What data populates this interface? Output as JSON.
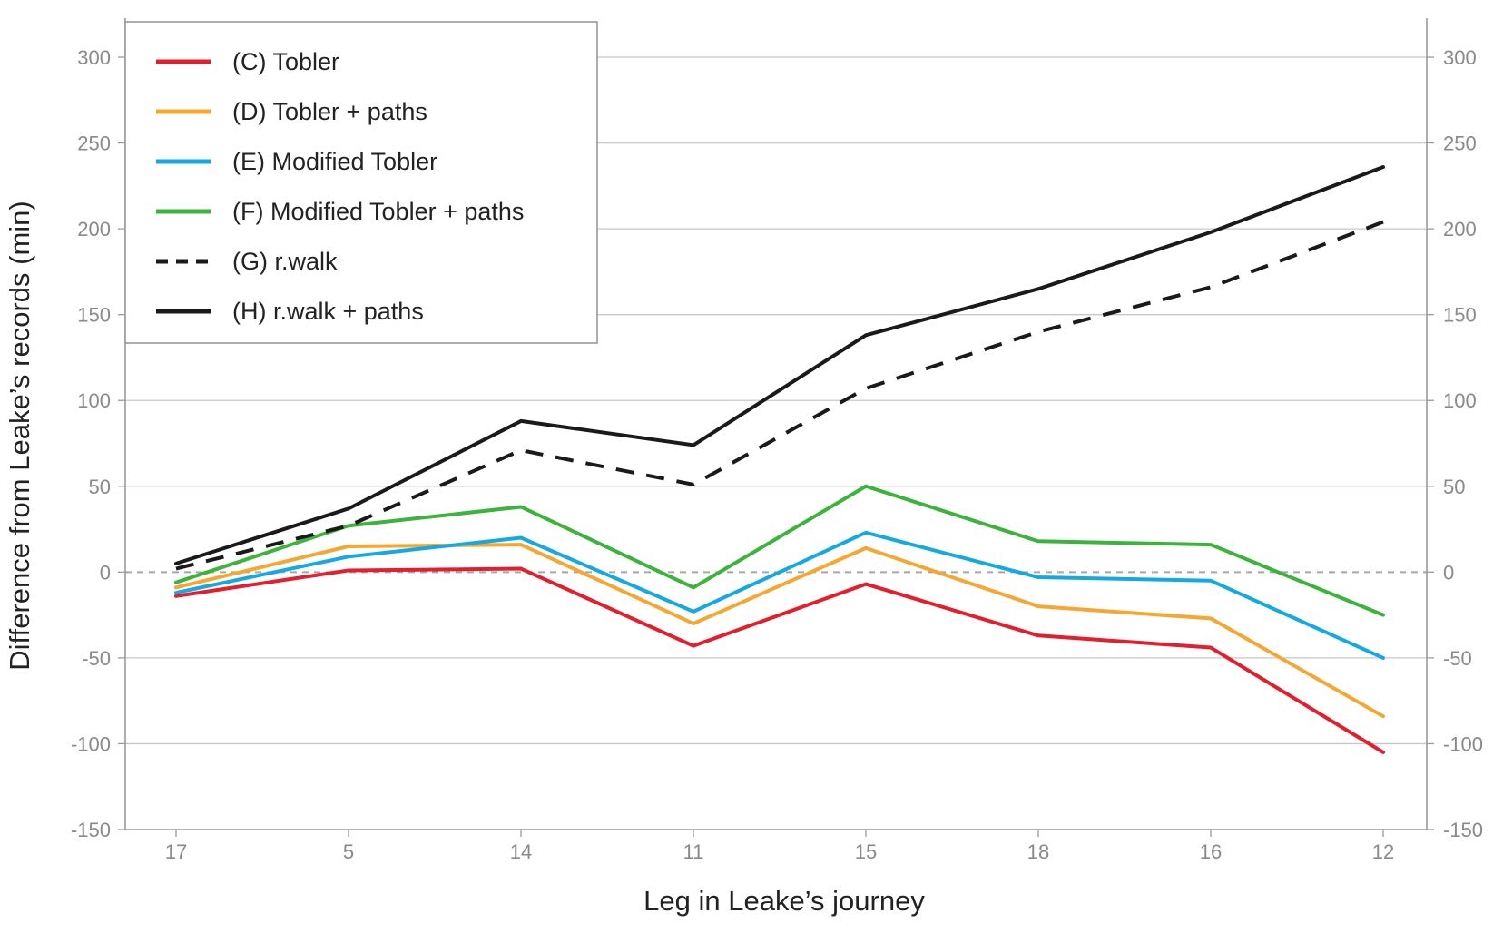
{
  "chart_data": {
    "type": "line",
    "title": "",
    "xlabel": "Leg in Leake’s journey",
    "ylabel": "Difference from Leake’s records (min)",
    "categories": [
      "17",
      "5",
      "14",
      "11",
      "15",
      "18",
      "16",
      "12"
    ],
    "ylim": [
      -150,
      300
    ],
    "yticks": [
      -150,
      -100,
      -50,
      0,
      50,
      100,
      150,
      200,
      250,
      300
    ],
    "ytick_labels": [
      "-150",
      "-100",
      "-50",
      "0",
      "50",
      "100",
      "150",
      "200",
      "250",
      "300"
    ],
    "grid": true,
    "zero_line": "dashed",
    "right_axis": true,
    "legend_position": "top-left",
    "series": [
      {
        "name": "(C) Tobler",
        "color": "#e31e2d",
        "style": "solid",
        "values": [
          -14,
          1,
          2,
          -43,
          -7,
          -37,
          -44,
          -105
        ]
      },
      {
        "name": "(D) Tobler + paths",
        "color": "#f5a731",
        "style": "solid",
        "values": [
          -9,
          15,
          16,
          -30,
          14,
          -20,
          -27,
          -84
        ]
      },
      {
        "name": "(E) Modified Tobler",
        "color": "#14a9e3",
        "style": "solid",
        "values": [
          -12,
          9,
          20,
          -23,
          23,
          -3,
          -5,
          -50
        ]
      },
      {
        "name": "(F) Modified Tobler + paths",
        "color": "#3cb43c",
        "style": "solid",
        "values": [
          -6,
          27,
          38,
          -9,
          50,
          18,
          16,
          -25
        ]
      },
      {
        "name": "(G) r.walk",
        "color": "#1a1a1a",
        "style": "dashed",
        "values": [
          2,
          27,
          71,
          51,
          107,
          140,
          166,
          204
        ]
      },
      {
        "name": "(H) r.walk + paths",
        "color": "#1a1a1a",
        "style": "solid",
        "values": [
          5,
          37,
          88,
          74,
          138,
          165,
          198,
          236
        ]
      }
    ]
  }
}
